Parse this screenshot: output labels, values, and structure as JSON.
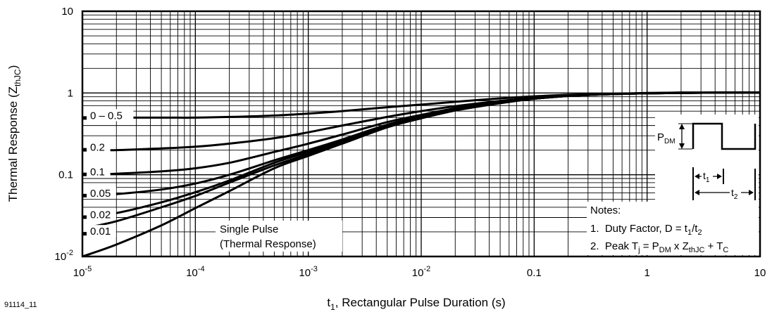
{
  "figure_id": "91114_11",
  "chart_data": {
    "type": "line",
    "xlabel": "t1, Rectangular Pulse Duration (s)",
    "ylabel": "Thermal Response (ZthJC)",
    "xscale": "log",
    "yscale": "log",
    "xlim": [
      1e-05,
      10
    ],
    "ylim": [
      0.01,
      10
    ],
    "grid": true,
    "x_ticks": [
      "10-5",
      "10-4",
      "10-3",
      "10-2",
      "0.1",
      "1",
      "10"
    ],
    "y_ticks": [
      "10-2",
      "0.1",
      "1",
      "10"
    ],
    "series": [
      {
        "name": "0 – 0.5",
        "x": [
          1e-05,
          2e-05,
          5e-05,
          0.0001,
          0.0002,
          0.0005,
          0.001,
          0.002,
          0.005,
          0.01,
          0.02,
          0.05,
          0.1,
          0.2,
          0.5,
          1,
          2,
          5,
          10
        ],
        "y": [
          0.49,
          0.5,
          0.5,
          0.5,
          0.51,
          0.53,
          0.56,
          0.6,
          0.67,
          0.72,
          0.78,
          0.86,
          0.91,
          0.95,
          0.98,
          1.0,
          1.01,
          1.01,
          1.01
        ]
      },
      {
        "name": "0.2",
        "x": [
          1e-05,
          2e-05,
          5e-05,
          0.0001,
          0.0002,
          0.0005,
          0.001,
          0.002,
          0.005,
          0.01,
          0.02,
          0.05,
          0.1,
          0.2,
          0.5,
          1,
          2,
          5,
          10
        ],
        "y": [
          0.2,
          0.2,
          0.21,
          0.22,
          0.24,
          0.28,
          0.33,
          0.4,
          0.51,
          0.6,
          0.69,
          0.8,
          0.87,
          0.93,
          0.97,
          0.99,
          1.01,
          1.01,
          1.01
        ]
      },
      {
        "name": "0.1",
        "x": [
          1e-05,
          2e-05,
          5e-05,
          0.0001,
          0.0002,
          0.0005,
          0.001,
          0.002,
          0.005,
          0.01,
          0.02,
          0.05,
          0.1,
          0.2,
          0.5,
          1,
          2,
          5,
          10
        ],
        "y": [
          0.1,
          0.103,
          0.11,
          0.12,
          0.14,
          0.19,
          0.24,
          0.31,
          0.44,
          0.54,
          0.65,
          0.78,
          0.86,
          0.92,
          0.97,
          0.99,
          1.0,
          1.01,
          1.01
        ]
      },
      {
        "name": "0.05",
        "x": [
          1e-05,
          2e-05,
          5e-05,
          0.0001,
          0.0002,
          0.0005,
          0.001,
          0.002,
          0.005,
          0.01,
          0.02,
          0.05,
          0.1,
          0.2,
          0.5,
          1,
          2,
          5,
          10
        ],
        "y": [
          0.055,
          0.058,
          0.066,
          0.078,
          0.1,
          0.15,
          0.2,
          0.27,
          0.41,
          0.52,
          0.63,
          0.77,
          0.85,
          0.92,
          0.97,
          0.99,
          1.0,
          1.01,
          1.01
        ]
      },
      {
        "name": "0.02",
        "x": [
          1e-05,
          2e-05,
          5e-05,
          0.0001,
          0.0002,
          0.0005,
          0.001,
          0.002,
          0.005,
          0.01,
          0.02,
          0.05,
          0.1,
          0.2,
          0.5,
          1,
          2,
          5,
          10
        ],
        "y": [
          0.03,
          0.034,
          0.046,
          0.061,
          0.085,
          0.14,
          0.19,
          0.26,
          0.4,
          0.51,
          0.62,
          0.76,
          0.85,
          0.92,
          0.97,
          0.99,
          1.0,
          1.01,
          1.01
        ]
      },
      {
        "name": "0.01",
        "x": [
          1e-05,
          2e-05,
          5e-05,
          0.0001,
          0.0002,
          0.0005,
          0.001,
          0.002,
          0.005,
          0.01,
          0.02,
          0.05,
          0.1,
          0.2,
          0.5,
          1,
          2,
          5,
          10
        ],
        "y": [
          0.022,
          0.027,
          0.04,
          0.055,
          0.08,
          0.13,
          0.18,
          0.25,
          0.39,
          0.5,
          0.62,
          0.76,
          0.85,
          0.92,
          0.97,
          0.99,
          1.0,
          1.01,
          1.01
        ]
      },
      {
        "name": "Single Pulse",
        "x": [
          1e-05,
          2e-05,
          5e-05,
          0.0001,
          0.0002,
          0.0005,
          0.001,
          0.002,
          0.005,
          0.01,
          0.02,
          0.05,
          0.1,
          0.2,
          0.5,
          1,
          2,
          5,
          10
        ],
        "y": [
          0.01,
          0.014,
          0.024,
          0.039,
          0.063,
          0.12,
          0.17,
          0.24,
          0.38,
          0.49,
          0.61,
          0.75,
          0.85,
          0.92,
          0.97,
          0.99,
          1.0,
          1.01,
          1.01
        ]
      }
    ],
    "duty_labels": [
      "0 – 0.5",
      "0.2",
      "0.1",
      "0.05",
      "0.02",
      "0.01"
    ],
    "annotations": {
      "single_pulse_line1": "Single Pulse",
      "single_pulse_line2": "(Thermal Response)",
      "notes_title": "Notes:",
      "note1": "1.  Duty Factor, D = t1/t2",
      "note2": "2.  Peak Tj = PDM x ZthJC + TC",
      "pdm_label": "PDM",
      "t1_label": "t1",
      "t2_label": "t2"
    }
  }
}
